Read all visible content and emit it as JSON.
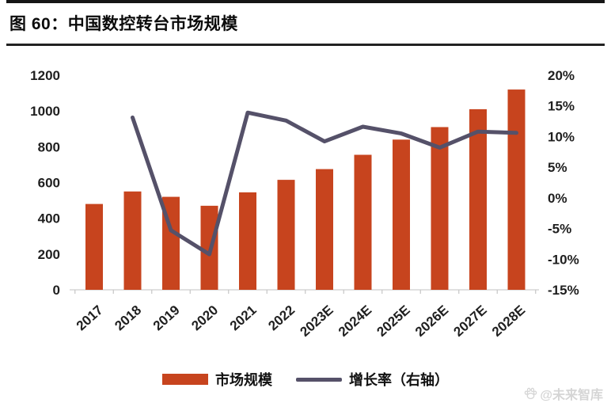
{
  "header": {
    "title": "图 60：中国数控转台市场规模"
  },
  "watermark": {
    "icon": "paw-icon",
    "text": "@未来智库"
  },
  "chart_data": {
    "type": "bar",
    "title": "中国数控转台市场规模",
    "categories": [
      "2017",
      "2018",
      "2019",
      "2020",
      "2021",
      "2022",
      "2023E",
      "2024E",
      "2025E",
      "2026E",
      "2027E",
      "2028E"
    ],
    "series": [
      {
        "name": "市场规模",
        "type": "bar",
        "axis": "left",
        "color": "#c7441e",
        "values": [
          480,
          550,
          520,
          470,
          545,
          615,
          675,
          755,
          840,
          910,
          1010,
          1120
        ]
      },
      {
        "name": "增长率（右轴）",
        "type": "line",
        "axis": "right",
        "color": "#555169",
        "values": [
          null,
          13.1,
          -5.3,
          -9.2,
          13.9,
          12.6,
          9.2,
          11.6,
          10.5,
          8.2,
          10.8,
          10.6
        ]
      }
    ],
    "left_axis": {
      "min": 0,
      "max": 1200,
      "ticks": [
        0,
        200,
        400,
        600,
        800,
        1000,
        1200
      ],
      "suffix": ""
    },
    "right_axis": {
      "min": -15,
      "max": 20,
      "ticks": [
        -15,
        -10,
        -5,
        0,
        5,
        10,
        15,
        20
      ],
      "suffix": "%"
    },
    "legend_position": "bottom",
    "grid": false,
    "x_tick_rotation": -42
  }
}
